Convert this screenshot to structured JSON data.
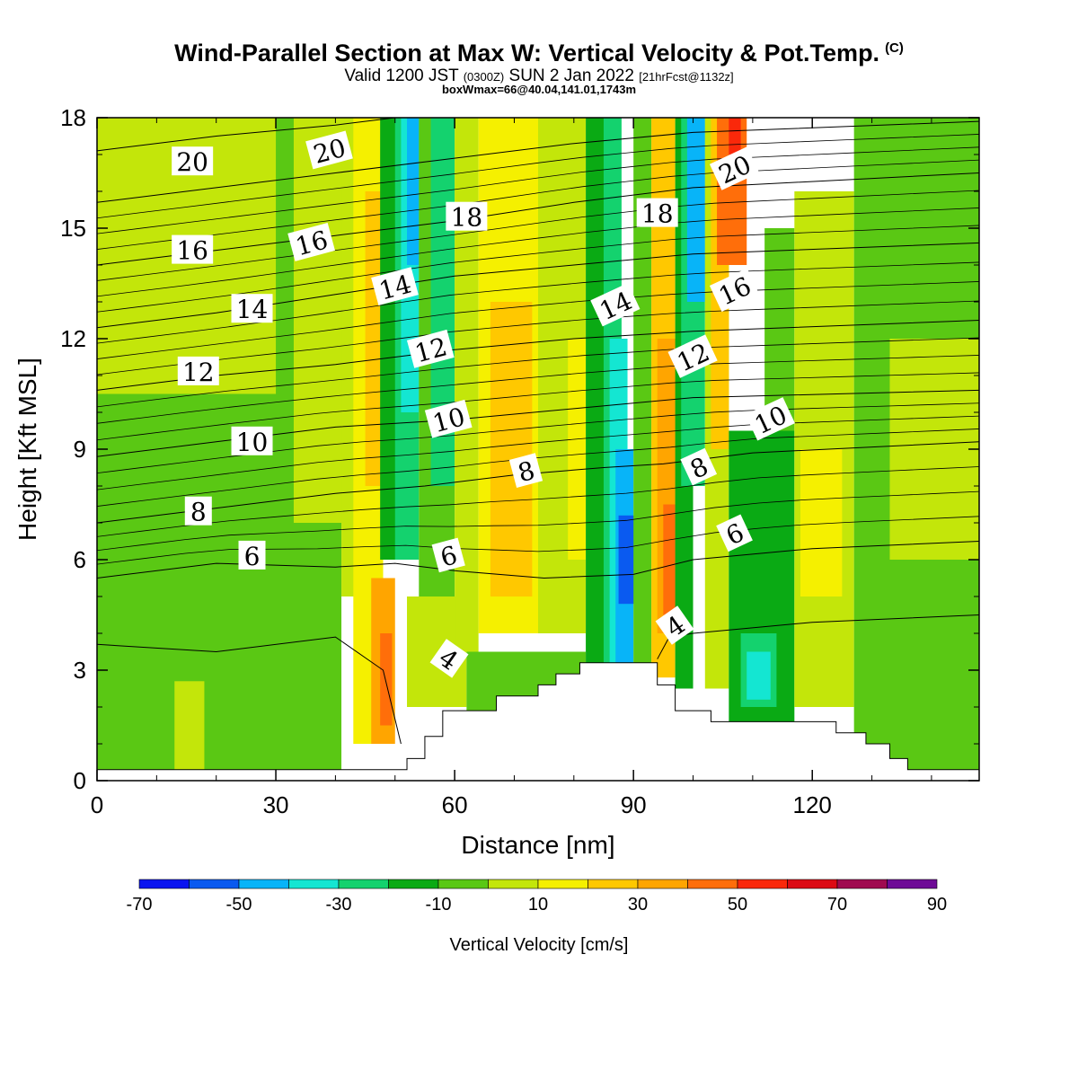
{
  "header": {
    "title": "Wind-Parallel Section at Max W: Vertical Velocity & Pot.Temp.",
    "copyright_mark": "(C)",
    "valid_prefix": "Valid 1200 JST",
    "valid_utc": "(0300Z)",
    "valid_date": "SUN 2 Jan 2022",
    "forecast_info": "[21hrFcst@1132z]",
    "box_info": "boxWmax=66@40.04,141.01,1743m"
  },
  "chart_data": {
    "type": "heatmap",
    "xlabel": "Distance [nm]",
    "ylabel": "Height [Kft MSL]",
    "xlim": [
      0,
      148
    ],
    "ylim": [
      0,
      18
    ],
    "x_ticks": [
      0,
      30,
      60,
      90,
      120
    ],
    "y_ticks": [
      0,
      3,
      6,
      9,
      12,
      15,
      18
    ],
    "colorbar": {
      "label": "Vertical Velocity [cm/s]",
      "tick_labels": [
        "-70",
        "-50",
        "-30",
        "-10",
        "10",
        "30",
        "50",
        "70",
        "90"
      ],
      "tick_values": [
        -70,
        -50,
        -30,
        -10,
        10,
        30,
        50,
        70,
        90
      ],
      "bins": [
        -70,
        -60,
        -50,
        -40,
        -30,
        -20,
        -10,
        0,
        10,
        20,
        30,
        40,
        50,
        60,
        70,
        80,
        90
      ],
      "colors": [
        "#0a14f0",
        "#0a5af0",
        "#08b4f8",
        "#14e6d2",
        "#14d26e",
        "#0aaa14",
        "#5ac814",
        "#c3e60a",
        "#f5f000",
        "#ffc800",
        "#ffa500",
        "#ff6e0a",
        "#fa280a",
        "#dc0a14",
        "#a00a50",
        "#6e0a96"
      ]
    },
    "vertical_velocity_cells": [
      {
        "x0": 0,
        "x1": 41,
        "y0": 0,
        "y1": 18,
        "w": -3
      },
      {
        "x0": 0,
        "x1": 30,
        "y0": 10.5,
        "y1": 18,
        "w": 5
      },
      {
        "x0": 13,
        "x1": 18,
        "y0": 0.3,
        "y1": 2.7,
        "w": 5
      },
      {
        "x0": 33,
        "x1": 43,
        "y0": 7,
        "y1": 18,
        "w": 5
      },
      {
        "x0": 41,
        "x1": 45,
        "y0": 5,
        "y1": 18,
        "w": 5
      },
      {
        "x0": 43,
        "x1": 48,
        "y0": 1,
        "y1": 18,
        "w": 15
      },
      {
        "x0": 45,
        "x1": 48,
        "y0": 8,
        "y1": 16,
        "w": 25
      },
      {
        "x0": 46,
        "x1": 50,
        "y0": 1,
        "y1": 5.5,
        "w": 30
      },
      {
        "x0": 47.5,
        "x1": 49.5,
        "y0": 1.5,
        "y1": 4,
        "w": 45
      },
      {
        "x0": 47.5,
        "x1": 50.5,
        "y0": 6,
        "y1": 18,
        "w": -15
      },
      {
        "x0": 50,
        "x1": 54,
        "y0": 6,
        "y1": 18,
        "w": -22
      },
      {
        "x0": 51,
        "x1": 54,
        "y0": 10,
        "y1": 18,
        "w": -35
      },
      {
        "x0": 52,
        "x1": 54,
        "y0": 14,
        "y1": 18,
        "w": -45
      },
      {
        "x0": 54,
        "x1": 60,
        "y0": 5,
        "y1": 18,
        "w": -10
      },
      {
        "x0": 56,
        "x1": 60,
        "y0": 8,
        "y1": 18,
        "w": -25
      },
      {
        "x0": 52,
        "x1": 62,
        "y0": 2,
        "y1": 5,
        "w": 5
      },
      {
        "x0": 60,
        "x1": 64,
        "y0": 3.5,
        "y1": 18,
        "w": 5
      },
      {
        "x0": 64,
        "x1": 74,
        "y0": 4,
        "y1": 18,
        "w": 15
      },
      {
        "x0": 66,
        "x1": 73,
        "y0": 5,
        "y1": 13,
        "w": 25
      },
      {
        "x0": 74,
        "x1": 82,
        "y0": 4,
        "y1": 18,
        "w": 5
      },
      {
        "x0": 79,
        "x1": 82,
        "y0": 6,
        "y1": 12,
        "w": 15
      },
      {
        "x0": 62,
        "x1": 82,
        "y0": 0,
        "y1": 3.5,
        "w": -5
      },
      {
        "x0": 82,
        "x1": 85,
        "y0": 3,
        "y1": 18,
        "w": -12
      },
      {
        "x0": 85,
        "x1": 88,
        "y0": 3.2,
        "y1": 18,
        "w": -22
      },
      {
        "x0": 86,
        "x1": 89,
        "y0": 3.2,
        "y1": 12,
        "w": -35
      },
      {
        "x0": 87,
        "x1": 90,
        "y0": 3.2,
        "y1": 9,
        "w": -45
      },
      {
        "x0": 87.5,
        "x1": 90.5,
        "y0": 4.8,
        "y1": 7.2,
        "w": -55
      },
      {
        "x0": 90,
        "x1": 93,
        "y0": 3.2,
        "y1": 18,
        "w": -5
      },
      {
        "x0": 93,
        "x1": 97,
        "y0": 2.8,
        "y1": 18,
        "w": 20
      },
      {
        "x0": 94,
        "x1": 98,
        "y0": 4,
        "y1": 12,
        "w": 30
      },
      {
        "x0": 95,
        "x1": 98,
        "y0": 4.5,
        "y1": 7.5,
        "w": 45
      },
      {
        "x0": 97,
        "x1": 100,
        "y0": 2.5,
        "y1": 18,
        "w": -15
      },
      {
        "x0": 98,
        "x1": 102,
        "y0": 8,
        "y1": 18,
        "w": -30
      },
      {
        "x0": 99,
        "x1": 102,
        "y0": 13,
        "y1": 18,
        "w": -45
      },
      {
        "x0": 102,
        "x1": 106,
        "y0": 2.5,
        "y1": 18,
        "w": 5
      },
      {
        "x0": 103,
        "x1": 106,
        "y0": 9,
        "y1": 18,
        "w": 25
      },
      {
        "x0": 104,
        "x1": 109,
        "y0": 14,
        "y1": 18,
        "w": 40
      },
      {
        "x0": 106,
        "x1": 108,
        "y0": 17,
        "y1": 18,
        "w": 55
      },
      {
        "x0": 106,
        "x1": 117,
        "y0": 1.5,
        "y1": 9.5,
        "w": -15
      },
      {
        "x0": 108,
        "x1": 114,
        "y0": 2,
        "y1": 4,
        "w": -25
      },
      {
        "x0": 109,
        "x1": 113,
        "y0": 2.2,
        "y1": 3.5,
        "w": -35
      },
      {
        "x0": 112,
        "x1": 117,
        "y0": 9.5,
        "y1": 15,
        "w": -5
      },
      {
        "x0": 117,
        "x1": 127,
        "y0": 2,
        "y1": 16,
        "w": 5
      },
      {
        "x0": 118,
        "x1": 125,
        "y0": 5,
        "y1": 9,
        "w": 15
      },
      {
        "x0": 127,
        "x1": 148,
        "y0": 0,
        "y1": 18,
        "w": -5
      },
      {
        "x0": 133,
        "x1": 148,
        "y0": 6,
        "y1": 12,
        "w": 5
      }
    ],
    "terrain_profile_kft": [
      [
        0,
        0.3
      ],
      [
        52,
        0.3
      ],
      [
        52,
        0.6
      ],
      [
        55,
        0.6
      ],
      [
        55,
        1.2
      ],
      [
        58,
        1.2
      ],
      [
        58,
        1.9
      ],
      [
        67,
        1.9
      ],
      [
        67,
        2.3
      ],
      [
        74,
        2.3
      ],
      [
        74,
        2.6
      ],
      [
        77,
        2.6
      ],
      [
        77,
        2.9
      ],
      [
        81,
        2.9
      ],
      [
        81,
        3.2
      ],
      [
        94,
        3.2
      ],
      [
        94,
        2.6
      ],
      [
        97,
        2.6
      ],
      [
        97,
        1.9
      ],
      [
        103,
        1.9
      ],
      [
        103,
        1.6
      ],
      [
        124,
        1.6
      ],
      [
        124,
        1.3
      ],
      [
        129,
        1.3
      ],
      [
        129,
        1.0
      ],
      [
        133,
        1.0
      ],
      [
        133,
        0.6
      ],
      [
        136,
        0.6
      ],
      [
        136,
        0.3
      ],
      [
        148,
        0.3
      ]
    ],
    "theta_contours": [
      {
        "label": "4",
        "points": [
          [
            0,
            3.7
          ],
          [
            20,
            3.5
          ],
          [
            40,
            3.9
          ],
          [
            48,
            3.0
          ],
          [
            51,
            1.0
          ]
        ],
        "label_at": [
          59,
          3.3
        ],
        "label_rot": 35
      },
      {
        "label": "4",
        "points": [
          [
            94,
            3.3
          ],
          [
            96,
            3.9
          ],
          [
            100,
            4.0
          ],
          [
            120,
            4.3
          ],
          [
            148,
            4.5
          ]
        ],
        "label_at": [
          97,
          4.2
        ],
        "label_rot": -35
      },
      {
        "label": "6",
        "points": [
          [
            0,
            5.5
          ],
          [
            20,
            5.9
          ],
          [
            40,
            5.8
          ],
          [
            50,
            5.9
          ],
          [
            60,
            5.7
          ],
          [
            75,
            5.5
          ],
          [
            90,
            5.6
          ],
          [
            100,
            6.0
          ],
          [
            120,
            6.3
          ],
          [
            148,
            6.5
          ]
        ],
        "label_at": [
          26,
          6.1
        ],
        "label_rot": 0,
        "label2_at": [
          59,
          6.1
        ],
        "label3_at": [
          107,
          6.7
        ]
      },
      {
        "label": "8",
        "points": [
          [
            0,
            7.0
          ],
          [
            20,
            7.4
          ],
          [
            40,
            7.8
          ],
          [
            55,
            8.0
          ],
          [
            70,
            8.3
          ],
          [
            85,
            8.5
          ],
          [
            95,
            8.6
          ],
          [
            110,
            8.9
          ],
          [
            148,
            9.2
          ]
        ],
        "label_at": [
          17,
          7.3
        ],
        "label_rot": 0,
        "label2_at": [
          72,
          8.4
        ],
        "label3_at": [
          101,
          8.5
        ]
      },
      {
        "label": "10",
        "points": [
          [
            0,
            8.8
          ],
          [
            20,
            9.2
          ],
          [
            40,
            9.6
          ],
          [
            60,
            9.8
          ],
          [
            80,
            10.1
          ],
          [
            100,
            10.4
          ],
          [
            148,
            10.6
          ]
        ],
        "label_at": [
          26,
          9.2
        ],
        "label_rot": 0,
        "label2_at": [
          59,
          9.8
        ],
        "label3_at": [
          113,
          9.8
        ]
      },
      {
        "label": "12",
        "points": [
          [
            0,
            10.6
          ],
          [
            20,
            11.0
          ],
          [
            40,
            11.3
          ],
          [
            60,
            11.7
          ],
          [
            80,
            12.0
          ],
          [
            100,
            12.2
          ],
          [
            148,
            12.5
          ]
        ],
        "label_at": [
          17,
          11.1
        ],
        "label_rot": 0,
        "label2_at": [
          56,
          11.7
        ],
        "label3_at": [
          100,
          11.5
        ]
      },
      {
        "label": "14",
        "points": [
          [
            0,
            12.3
          ],
          [
            20,
            12.7
          ],
          [
            40,
            13.2
          ],
          [
            60,
            13.7
          ],
          [
            80,
            14.0
          ],
          [
            100,
            14.3
          ],
          [
            148,
            14.6
          ]
        ],
        "label_at": [
          26,
          12.8
        ],
        "label_rot": 0,
        "label2_at": [
          50,
          13.4
        ],
        "label3_at": [
          87,
          12.9
        ]
      },
      {
        "label": "16",
        "points": [
          [
            0,
            14.0
          ],
          [
            20,
            14.4
          ],
          [
            40,
            14.8
          ],
          [
            60,
            15.2
          ],
          [
            80,
            15.7
          ],
          [
            100,
            16.1
          ],
          [
            148,
            16.5
          ]
        ],
        "label_at": [
          16,
          14.4
        ],
        "label_rot": 0,
        "label2_at": [
          36,
          14.6
        ],
        "label3_at": [
          107,
          13.3
        ]
      },
      {
        "label": "18",
        "points": [
          [
            0,
            15.7
          ],
          [
            20,
            16.1
          ],
          [
            40,
            16.5
          ],
          [
            60,
            16.9
          ],
          [
            80,
            17.3
          ],
          [
            100,
            17.6
          ],
          [
            148,
            17.9
          ]
        ],
        "label_at": [
          62,
          15.3
        ],
        "label_rot": 0,
        "label2_at": [
          94,
          15.4
        ]
      },
      {
        "label": "20",
        "points": [
          [
            0,
            17.1
          ],
          [
            20,
            17.5
          ],
          [
            40,
            17.8
          ],
          [
            50,
            18.0
          ]
        ],
        "label_at": [
          16,
          16.8
        ],
        "label_rot": 0,
        "label2_at": [
          39,
          17.1
        ],
        "label3_at": [
          107,
          16.6
        ]
      }
    ]
  }
}
